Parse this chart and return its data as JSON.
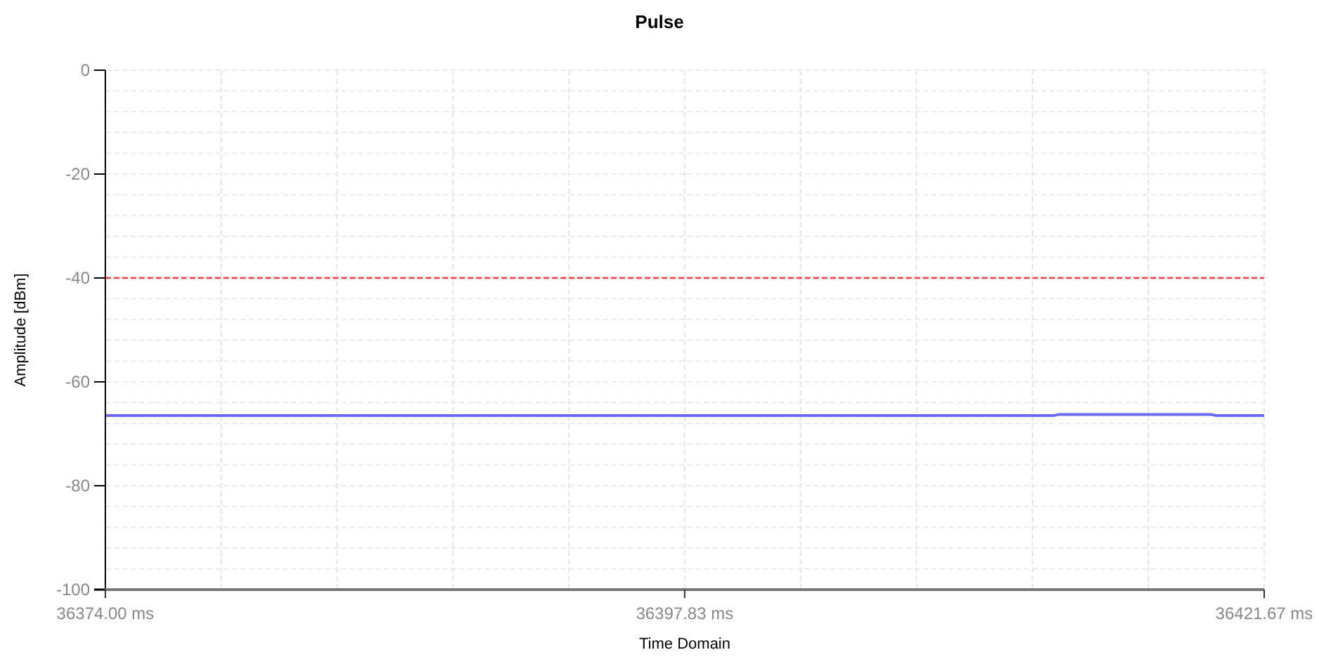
{
  "chart_data": {
    "type": "line",
    "title": "Pulse",
    "xlabel": "Time Domain",
    "ylabel": "Amplitude [dBm]",
    "series": [
      {
        "color": "#6b6bf0",
        "x": [
          36374,
          36413,
          36413.2,
          36419.5,
          36419.7,
          36421.67
        ],
        "values": [
          -66.5,
          -66.5,
          -66.3,
          -66.3,
          -66.5,
          -66.5
        ]
      }
    ],
    "xlim": [
      36374,
      36421.67
    ],
    "xticks": [
      {
        "value": 36374,
        "label": "36374.00 ms"
      },
      {
        "value": 36397.83,
        "label": "36397.83 ms"
      },
      {
        "value": 36421.67,
        "label": "36421.67 ms"
      }
    ],
    "ylim": [
      -100,
      0
    ],
    "yticks": [
      -100,
      -80,
      -60,
      -40,
      -20,
      0
    ],
    "ref_lines": [
      {
        "axis": "y",
        "value": -40,
        "color": "#ff3b3b",
        "line_style": "dashed"
      }
    ],
    "grid": true,
    "marker": "none",
    "line_style": "solid"
  }
}
